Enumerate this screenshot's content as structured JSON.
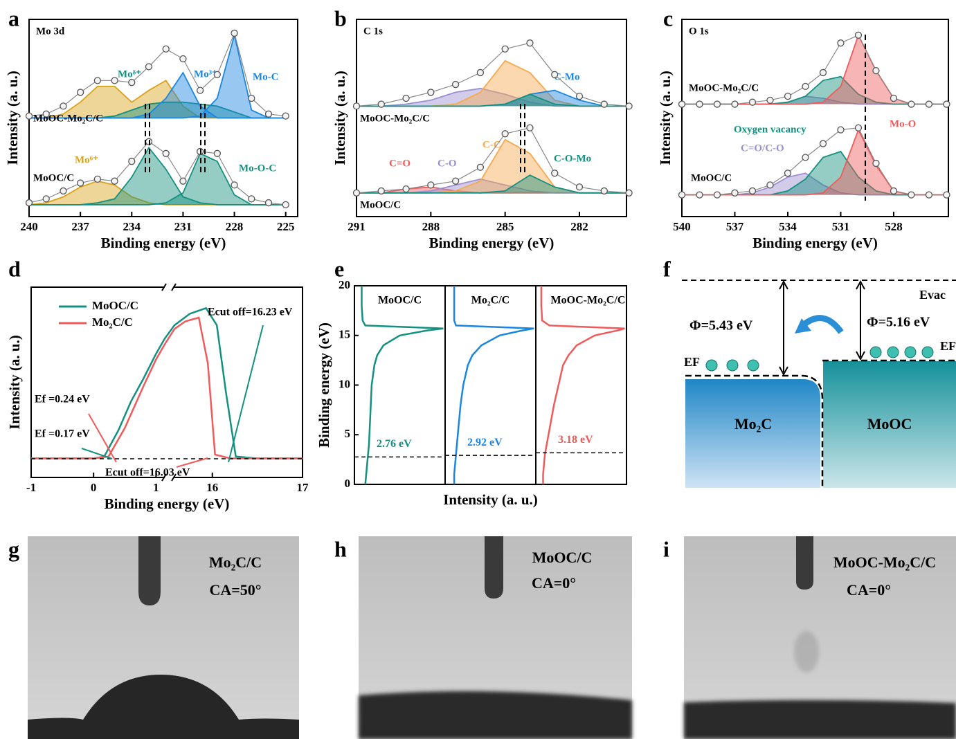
{
  "chart_data": [
    {
      "type": "line",
      "panel_label": "a",
      "title": "Mo 3d",
      "xlabel": "Binding energy (eV)",
      "ylabel": "Intensity (a. u.)",
      "x": [
        240,
        239,
        238,
        237,
        236,
        235,
        234,
        233,
        232,
        231,
        230,
        229,
        228,
        227,
        226,
        225
      ],
      "xlim": [
        240,
        224.3
      ],
      "xticks": [
        240,
        237,
        234,
        231,
        228,
        225
      ],
      "ylim": [
        0,
        10
      ],
      "series": [
        {
          "name": "MoOC-Mo₂C/C",
          "marker": "circle",
          "color": "#555555",
          "values": [
            5.1,
            5.2,
            5.6,
            6.3,
            6.9,
            6.9,
            6.8,
            7.6,
            8.5,
            8.0,
            6.4,
            7.2,
            9.3,
            6.0,
            5.2,
            5.1
          ]
        },
        {
          "name": "MoOC/C",
          "marker": "circle",
          "color": "#555555",
          "values": [
            0.7,
            0.9,
            1.3,
            1.7,
            1.9,
            1.8,
            2.8,
            3.8,
            3.2,
            1.8,
            3.3,
            3.2,
            1.6,
            0.9,
            0.7,
            0.6
          ]
        },
        {
          "fill": true,
          "color": "#d9a21b",
          "values": [
            5.0,
            5.0,
            5.2,
            5.8,
            6.6,
            6.6,
            5.8,
            6.4,
            6.9,
            5.6,
            5.0,
            5.0,
            5.0,
            5.0,
            5.0,
            5.0
          ]
        },
        {
          "name": "Moᵟ⁺",
          "fill": true,
          "color": "#13907f",
          "values": [
            5,
            5,
            5,
            5,
            5,
            5.1,
            5.4,
            5.7,
            5.8,
            5.8,
            5.7,
            5.6,
            5.3,
            5,
            5,
            5
          ]
        },
        {
          "name": "Mo³⁺",
          "fill": true,
          "color": "#1a86e0",
          "values": [
            5,
            5,
            5,
            5,
            5,
            5,
            5,
            5.2,
            6.0,
            7.3,
            5.6,
            5,
            5,
            5,
            5,
            5
          ]
        },
        {
          "name": "Mo-C",
          "fill": true,
          "color": "#1a86e0",
          "values": [
            5,
            5,
            5,
            5,
            5,
            5,
            5,
            5,
            5,
            5,
            5.1,
            6.0,
            9.2,
            5.4,
            5,
            5
          ]
        },
        {
          "name": "Mo⁶⁺",
          "fill": true,
          "color": "#d9a21b",
          "values": [
            0.6,
            0.7,
            1.0,
            1.5,
            1.8,
            1.6,
            1.0,
            0.7,
            0.6,
            0.6,
            0.6,
            0.6,
            0.6,
            0.6,
            0.6,
            0.6
          ]
        },
        {
          "fill": true,
          "color": "#13907f",
          "values": [
            0.6,
            0.6,
            0.6,
            0.6,
            0.7,
            0.9,
            2.0,
            3.5,
            2.4,
            1.0,
            0.7,
            0.6,
            0.6,
            0.6,
            0.6,
            0.6
          ]
        },
        {
          "name": "Mo-O-C",
          "fill": true,
          "color": "#13907f",
          "values": [
            0.6,
            0.6,
            0.6,
            0.6,
            0.6,
            0.6,
            0.6,
            0.6,
            0.7,
            1.2,
            3.2,
            2.8,
            1.1,
            0.6,
            0.6,
            0.6
          ]
        }
      ]
    },
    {
      "type": "line",
      "panel_label": "b",
      "title": "C 1s",
      "xlabel": "Binding energy (eV)",
      "ylabel": "Intensity (a. u.)",
      "x": [
        291,
        290,
        289,
        288,
        287,
        286,
        285,
        284,
        283,
        282,
        281,
        280
      ],
      "xlim": [
        291,
        280.1
      ],
      "xticks": [
        291,
        288,
        285,
        282
      ],
      "ylim": [
        0,
        10
      ],
      "series": [
        {
          "name": "MoOC-Mo₂C/C",
          "marker": "circle",
          "color": "#555555",
          "values": [
            5.6,
            5.7,
            6.0,
            6.3,
            6.7,
            7.3,
            8.5,
            8.8,
            7.2,
            6.1,
            5.7,
            5.6
          ]
        },
        {
          "name": "MoOC/C",
          "marker": "circle",
          "color": "#555555",
          "values": [
            1.2,
            1.3,
            1.4,
            1.6,
            1.8,
            2.5,
            4.2,
            4.5,
            2.2,
            1.5,
            1.3,
            1.2
          ]
        },
        {
          "fill": true,
          "color": "#9b8fd0",
          "values": [
            5.6,
            5.6,
            5.7,
            5.9,
            6.3,
            6.5,
            6.2,
            5.8,
            5.6,
            5.6,
            5.6,
            5.6
          ]
        },
        {
          "fill": true,
          "color": "#f7a94e",
          "values": [
            5.6,
            5.6,
            5.6,
            5.6,
            5.7,
            6.3,
            7.9,
            7.3,
            5.9,
            5.6,
            5.6,
            5.6
          ]
        },
        {
          "name": "C-Mo",
          "fill": true,
          "color": "#1a86e0",
          "values": [
            5.6,
            5.6,
            5.6,
            5.6,
            5.6,
            5.6,
            5.7,
            6.2,
            6.4,
            5.9,
            5.6,
            5.6
          ]
        },
        {
          "fill": true,
          "color": "#13907f",
          "values": [
            5.6,
            5.6,
            5.6,
            5.6,
            5.6,
            5.6,
            5.7,
            6.2,
            5.7,
            5.6,
            5.6,
            5.6
          ]
        },
        {
          "name": "C=O",
          "fill": true,
          "color": "#f05a5a",
          "values": [
            1.2,
            1.2,
            1.4,
            1.5,
            1.3,
            1.2,
            1.2,
            1.2,
            1.2,
            1.2,
            1.2,
            1.2
          ]
        },
        {
          "name": "C-O",
          "fill": true,
          "color": "#9b8fd0",
          "values": [
            1.2,
            1.2,
            1.2,
            1.3,
            1.6,
            1.9,
            1.6,
            1.3,
            1.2,
            1.2,
            1.2,
            1.2
          ]
        },
        {
          "name": "C-C",
          "fill": true,
          "color": "#f7a94e",
          "values": [
            1.2,
            1.2,
            1.2,
            1.2,
            1.3,
            1.8,
            3.9,
            3.2,
            1.5,
            1.2,
            1.2,
            1.2
          ]
        },
        {
          "name": "C-O-Mo",
          "fill": true,
          "color": "#13907f",
          "values": [
            1.2,
            1.2,
            1.2,
            1.2,
            1.2,
            1.2,
            1.3,
            2.1,
            1.5,
            1.2,
            1.2,
            1.2
          ]
        }
      ]
    },
    {
      "type": "line",
      "panel_label": "c",
      "title": "O 1s",
      "xlabel": "Binding energy (eV)",
      "ylabel": "Intensity (a. u.)",
      "x": [
        540,
        539,
        538,
        537,
        536,
        535,
        534,
        533,
        532,
        531,
        530,
        529,
        528,
        527,
        526,
        525
      ],
      "xlim": [
        540,
        524.9
      ],
      "xticks": [
        540,
        537,
        534,
        531,
        528
      ],
      "ylim": [
        0,
        10
      ],
      "series": [
        {
          "name": "MoOC-Mo₂C/C",
          "marker": "circle",
          "color": "#555555",
          "values": [
            5.7,
            5.7,
            5.7,
            5.7,
            5.8,
            5.9,
            6.1,
            6.6,
            7.3,
            8.8,
            9.2,
            7.4,
            6.0,
            5.7,
            5.7,
            5.7
          ]
        },
        {
          "name": "MoOC/C",
          "marker": "circle",
          "color": "#555555",
          "values": [
            1.1,
            1.1,
            1.1,
            1.2,
            1.3,
            1.6,
            2.2,
            3.0,
            3.7,
            4.4,
            4.5,
            2.7,
            1.3,
            1.1,
            1.1,
            1.1
          ]
        },
        {
          "fill": true,
          "color": "#9b8fd0",
          "values": [
            5.7,
            5.7,
            5.7,
            5.7,
            5.7,
            5.7,
            5.8,
            6.1,
            6.0,
            5.8,
            5.7,
            5.7,
            5.7,
            5.7,
            5.7,
            5.7
          ]
        },
        {
          "fill": true,
          "color": "#13907f",
          "values": [
            5.7,
            5.7,
            5.7,
            5.7,
            5.7,
            5.7,
            5.8,
            6.1,
            6.9,
            7.1,
            6.2,
            5.8,
            5.7,
            5.7,
            5.7,
            5.7
          ]
        },
        {
          "fill": true,
          "color": "#f05a5a",
          "values": [
            5.7,
            5.7,
            5.7,
            5.7,
            5.7,
            5.7,
            5.7,
            5.7,
            5.8,
            6.6,
            9.2,
            7.4,
            6.0,
            5.7,
            5.7,
            5.7
          ]
        },
        {
          "name": "C=O/C-O",
          "fill": true,
          "color": "#9b8fd0",
          "values": [
            1.1,
            1.1,
            1.1,
            1.1,
            1.2,
            1.5,
            2.0,
            2.2,
            1.6,
            1.2,
            1.1,
            1.1,
            1.1,
            1.1,
            1.1,
            1.1
          ]
        },
        {
          "name": "Oxygen vacancy",
          "fill": true,
          "color": "#13907f",
          "values": [
            1.1,
            1.1,
            1.1,
            1.1,
            1.1,
            1.1,
            1.3,
            1.9,
            3.0,
            3.3,
            2.0,
            1.3,
            1.1,
            1.1,
            1.1,
            1.1
          ]
        },
        {
          "name": "Mo-O",
          "fill": true,
          "color": "#f05a5a",
          "values": [
            1.1,
            1.1,
            1.1,
            1.1,
            1.1,
            1.1,
            1.1,
            1.1,
            1.2,
            2.0,
            4.4,
            2.6,
            1.3,
            1.1,
            1.1,
            1.1
          ]
        }
      ]
    },
    {
      "type": "line",
      "panel_label": "d",
      "xlabel": "Binding energy (eV)",
      "ylabel": "Intensity (a. u.)",
      "xlim": [
        -1,
        17
      ],
      "xbreak": [
        1.14,
        15.58
      ],
      "xticks": [
        -1,
        0,
        1,
        16,
        17
      ],
      "ylim": [
        0,
        10
      ],
      "legend": "upper left",
      "annotations": [
        "Ecut off=16.23 eV",
        "Ef =0.24 eV",
        "Ef =0.17 eV",
        "Ecut off=16.03 eV"
      ],
      "series": [
        {
          "name": "MoOC/C",
          "color": "#13907f",
          "x": [
            -1,
            0,
            0.17,
            0.4,
            0.6,
            0.8,
            1.0,
            1.14,
            15.58,
            15.75,
            15.93,
            16.05,
            16.15,
            16.26,
            16.5,
            17
          ],
          "values": [
            1,
            1,
            1.1,
            2.5,
            4,
            5.2,
            6.5,
            7.3,
            8.0,
            8.6,
            8.9,
            8.0,
            4.5,
            1.1,
            1,
            1
          ]
        },
        {
          "name": "Mo₂C/C",
          "color": "#f05a5a",
          "x": [
            -1,
            0,
            0.24,
            0.5,
            0.8,
            1.0,
            1.14,
            15.58,
            15.7,
            15.85,
            15.95,
            16.03,
            16.2,
            17
          ],
          "values": [
            1,
            1,
            1.1,
            2.6,
            4.8,
            6.2,
            7.0,
            7.8,
            8.2,
            8.4,
            6.0,
            1.2,
            1,
            1
          ]
        }
      ]
    },
    {
      "type": "profile",
      "panel_label": "e",
      "xlabel": "Intensity (a. u.)",
      "ylabel": "Binding energy (eV)",
      "y": [
        0,
        1,
        2,
        3,
        4,
        6,
        8,
        10,
        12,
        13,
        14,
        15,
        15.5,
        15.7,
        16,
        16.5,
        18,
        20
      ],
      "ylim": [
        0,
        20
      ],
      "yticks": [
        0,
        5,
        10,
        15,
        20
      ],
      "xlim": [
        0,
        1
      ],
      "series": [
        {
          "name": "MoOC/C",
          "color": "#13907f",
          "edge": 2.76,
          "edge_label": "2.76 eV",
          "values": [
            0.12,
            0.13,
            0.14,
            0.15,
            0.16,
            0.17,
            0.18,
            0.19,
            0.22,
            0.25,
            0.32,
            0.5,
            0.8,
            0.98,
            0.12,
            0.09,
            0.08,
            0.08
          ]
        },
        {
          "name": "Mo₂C/C",
          "color": "#1a86e0",
          "edge": 2.92,
          "edge_label": "2.92 eV",
          "values": [
            0.1,
            0.1,
            0.11,
            0.12,
            0.13,
            0.15,
            0.17,
            0.2,
            0.25,
            0.3,
            0.4,
            0.6,
            0.85,
            0.98,
            0.12,
            0.1,
            0.1,
            0.1
          ]
        },
        {
          "name": "MoOC-Mo₂C/C",
          "color": "#f05a5a",
          "edge": 3.18,
          "edge_label": "3.18 eV",
          "values": [
            0.08,
            0.08,
            0.09,
            0.1,
            0.12,
            0.16,
            0.2,
            0.25,
            0.3,
            0.36,
            0.45,
            0.65,
            0.9,
            0.98,
            0.15,
            0.07,
            0.06,
            0.06
          ]
        }
      ]
    }
  ],
  "diagram": {
    "panel_label": "f",
    "vacuum_level": "Evac",
    "fermi_level": "EF",
    "left": {
      "material": "Mo₂C",
      "work_function": "Φ=5.43 eV"
    },
    "right": {
      "material": "MoOC",
      "work_function": "Φ=5.16 eV"
    }
  },
  "photos": [
    {
      "panel_label": "g",
      "sample": "Mo₂C/C",
      "contact_angle": "CA=50°"
    },
    {
      "panel_label": "h",
      "sample": "MoOC/C",
      "contact_angle": "CA=0°"
    },
    {
      "panel_label": "i",
      "sample": "MoOC-Mo₂C/C",
      "contact_angle": "CA=0°"
    }
  ]
}
